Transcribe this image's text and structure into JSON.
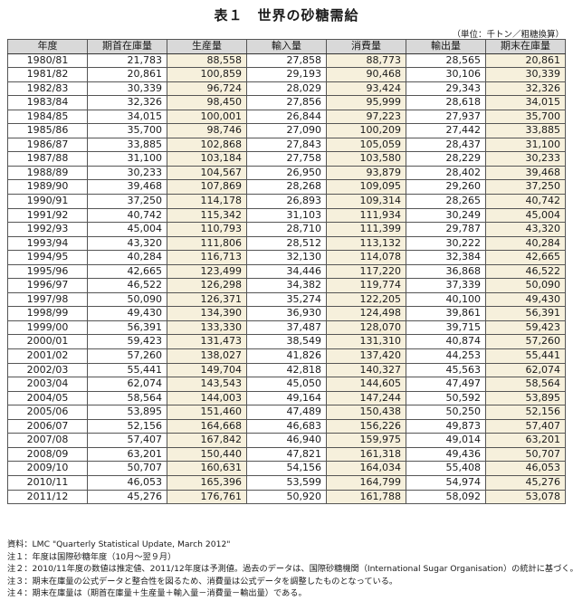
{
  "title": "表１　世界の砂糖需給",
  "unit": "（単位：千トン／粗糖換算）",
  "headers": [
    "年度",
    "期首在庫量",
    "生産量",
    "輸入量",
    "消費量",
    "輸出量",
    "期末在庫量"
  ],
  "rows": [
    [
      "1980/81",
      "21,783",
      "88,558",
      "27,858",
      "88,773",
      "28,565",
      "20,861"
    ],
    [
      "1981/82",
      "20,861",
      "100,859",
      "29,193",
      "90,468",
      "30,106",
      "30,339"
    ],
    [
      "1982/83",
      "30,339",
      "96,724",
      "28,029",
      "93,424",
      "29,343",
      "32,326"
    ],
    [
      "1983/84",
      "32,326",
      "98,450",
      "27,856",
      "95,999",
      "28,618",
      "34,015"
    ],
    [
      "1984/85",
      "34,015",
      "100,001",
      "26,844",
      "97,223",
      "27,937",
      "35,700"
    ],
    [
      "1985/86",
      "35,700",
      "98,746",
      "27,090",
      "100,209",
      "27,442",
      "33,885"
    ],
    [
      "1986/87",
      "33,885",
      "102,868",
      "27,843",
      "105,059",
      "28,437",
      "31,100"
    ],
    [
      "1987/88",
      "31,100",
      "103,184",
      "27,758",
      "103,580",
      "28,229",
      "30,233"
    ],
    [
      "1988/89",
      "30,233",
      "104,567",
      "26,950",
      "93,879",
      "28,402",
      "39,468"
    ],
    [
      "1989/90",
      "39,468",
      "107,869",
      "28,268",
      "109,095",
      "29,260",
      "37,250"
    ],
    [
      "1990/91",
      "37,250",
      "114,178",
      "26,893",
      "109,314",
      "28,265",
      "40,742"
    ],
    [
      "1991/92",
      "40,742",
      "115,342",
      "31,103",
      "111,934",
      "30,249",
      "45,004"
    ],
    [
      "1992/93",
      "45,004",
      "110,793",
      "28,710",
      "111,399",
      "29,787",
      "43,320"
    ],
    [
      "1993/94",
      "43,320",
      "111,806",
      "28,512",
      "113,132",
      "30,222",
      "40,284"
    ],
    [
      "1994/95",
      "40,284",
      "116,713",
      "32,130",
      "114,078",
      "32,384",
      "42,665"
    ],
    [
      "1995/96",
      "42,665",
      "123,499",
      "34,446",
      "117,220",
      "36,868",
      "46,522"
    ],
    [
      "1996/97",
      "46,522",
      "126,298",
      "34,382",
      "119,774",
      "37,339",
      "50,090"
    ],
    [
      "1997/98",
      "50,090",
      "126,371",
      "35,274",
      "122,205",
      "40,100",
      "49,430"
    ],
    [
      "1998/99",
      "49,430",
      "134,390",
      "36,930",
      "124,498",
      "39,861",
      "56,391"
    ],
    [
      "1999/00",
      "56,391",
      "133,330",
      "37,487",
      "128,070",
      "39,715",
      "59,423"
    ],
    [
      "2000/01",
      "59,423",
      "131,473",
      "38,549",
      "131,310",
      "40,874",
      "57,260"
    ],
    [
      "2001/02",
      "57,260",
      "138,027",
      "41,826",
      "137,420",
      "44,253",
      "55,441"
    ],
    [
      "2002/03",
      "55,441",
      "149,704",
      "42,818",
      "140,327",
      "45,563",
      "62,074"
    ],
    [
      "2003/04",
      "62,074",
      "143,543",
      "45,050",
      "144,605",
      "47,497",
      "58,564"
    ],
    [
      "2004/05",
      "58,564",
      "144,003",
      "49,164",
      "147,244",
      "50,592",
      "53,895"
    ],
    [
      "2005/06",
      "53,895",
      "151,460",
      "47,489",
      "150,438",
      "50,250",
      "52,156"
    ],
    [
      "2006/07",
      "52,156",
      "164,668",
      "46,683",
      "156,226",
      "49,873",
      "57,407"
    ],
    [
      "2007/08",
      "57,407",
      "167,842",
      "46,940",
      "159,975",
      "49,014",
      "63,201"
    ],
    [
      "2008/09",
      "63,201",
      "150,440",
      "47,821",
      "161,318",
      "49,436",
      "50,707"
    ],
    [
      "2009/10",
      "50,707",
      "160,631",
      "54,156",
      "164,034",
      "55,408",
      "46,053"
    ],
    [
      "2010/11",
      "46,053",
      "165,396",
      "53,599",
      "164,799",
      "54,974",
      "45,276"
    ],
    [
      "2011/12",
      "45,276",
      "176,761",
      "50,920",
      "161,788",
      "58,092",
      "53,078"
    ]
  ],
  "notes": [
    "資料：LMC \"Quarterly Statistical Update, March 2012\"",
    "注１：年度は国際砂糖年度（10月～翌９月）",
    "注２：2010/11年度の数値は推定値、2011/12年度は予測値。過去のデータは、国際砂糖機関（International Sugar Organisation）の統計に基づく。",
    "注３：期末在庫量の公式データと整合性を図るため、消費量は公式データを調整したものとなっている。",
    "注４：期末在庫量は（期首在庫量＋生産量＋輸入量－消費量－輸出量）である。"
  ]
}
